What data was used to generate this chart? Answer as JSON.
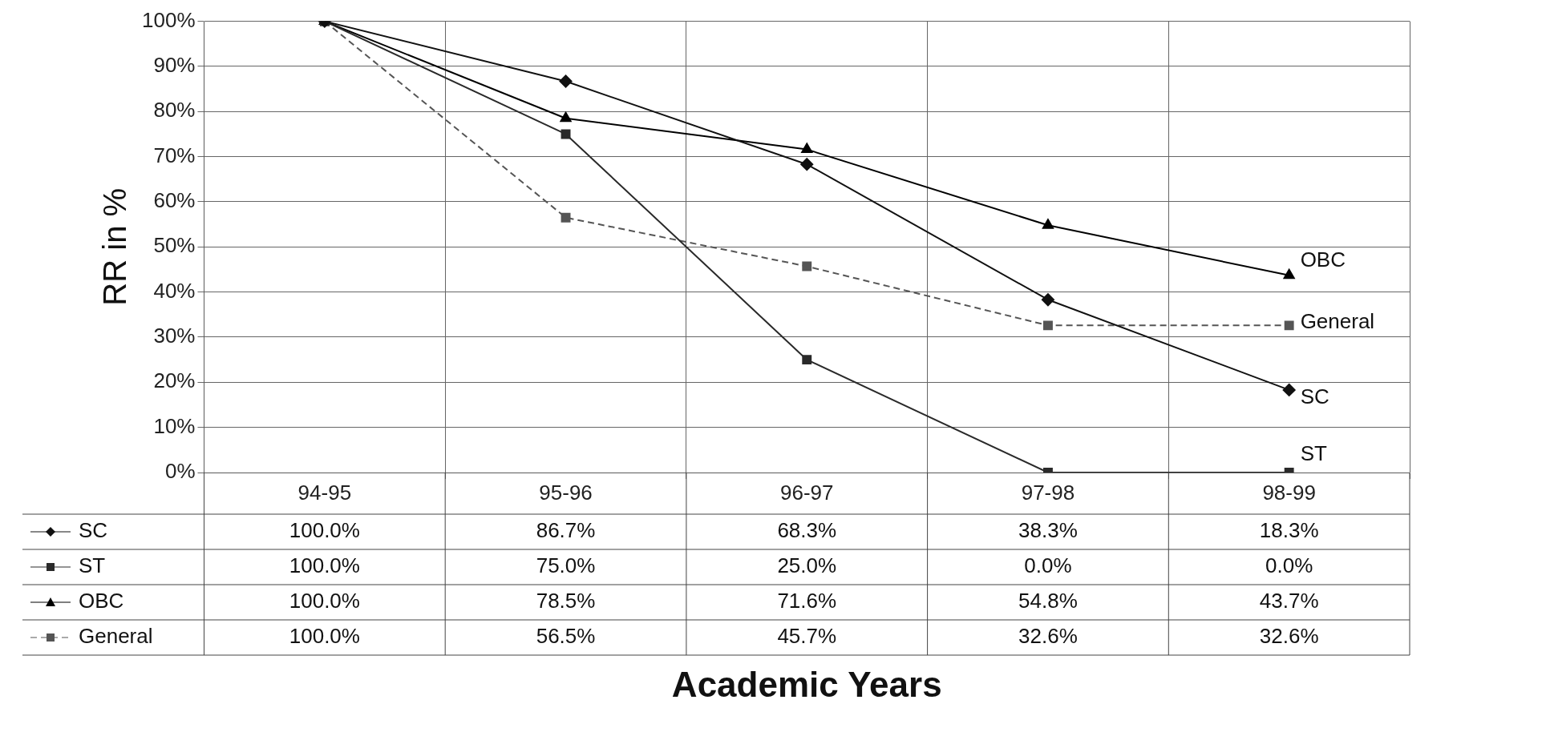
{
  "chart_data": {
    "type": "line",
    "xlabel": "Academic Years",
    "ylabel": "RR in %",
    "categories": [
      "94-95",
      "95-96",
      "96-97",
      "97-98",
      "98-99"
    ],
    "ylim": [
      0,
      100
    ],
    "yticks": [
      {
        "value": 0,
        "label": "0%"
      },
      {
        "value": 10,
        "label": "10%"
      },
      {
        "value": 20,
        "label": "20%"
      },
      {
        "value": 30,
        "label": "30%"
      },
      {
        "value": 40,
        "label": "40%"
      },
      {
        "value": 50,
        "label": "50%"
      },
      {
        "value": 60,
        "label": "60%"
      },
      {
        "value": 70,
        "label": "70%"
      },
      {
        "value": 80,
        "label": "80%"
      },
      {
        "value": 90,
        "label": "90%"
      },
      {
        "value": 100,
        "label": "100%"
      }
    ],
    "grid": true,
    "legend": "bottom",
    "series": [
      {
        "name": "SC",
        "color": "#111111",
        "marker": "diamond",
        "line_style": "solid",
        "values": [
          100,
          86.7,
          68.3,
          38.3,
          18.3
        ],
        "value_labels": [
          "100.0%",
          "86.7%",
          "68.3%",
          "38.3%",
          "18.3%"
        ]
      },
      {
        "name": "ST",
        "color": "#2a2a2a",
        "marker": "square",
        "line_style": "solid",
        "values": [
          100,
          75,
          25,
          0,
          0
        ],
        "value_labels": [
          "100.0%",
          "75.0%",
          "25.0%",
          "0.0%",
          "0.0%"
        ]
      },
      {
        "name": "OBC",
        "color": "#000000",
        "marker": "triangle",
        "line_style": "solid",
        "values": [
          100,
          78.5,
          71.6,
          54.8,
          43.7
        ],
        "value_labels": [
          "100.0%",
          "78.5%",
          "71.6%",
          "54.8%",
          "43.7%"
        ]
      },
      {
        "name": "General",
        "color": "#555555",
        "marker": "square",
        "line_style": "dashed",
        "values": [
          100,
          56.5,
          45.7,
          32.6,
          32.6
        ],
        "value_labels": [
          "100.0%",
          "56.5%",
          "45.7%",
          "32.6%",
          "32.6%"
        ]
      }
    ]
  }
}
